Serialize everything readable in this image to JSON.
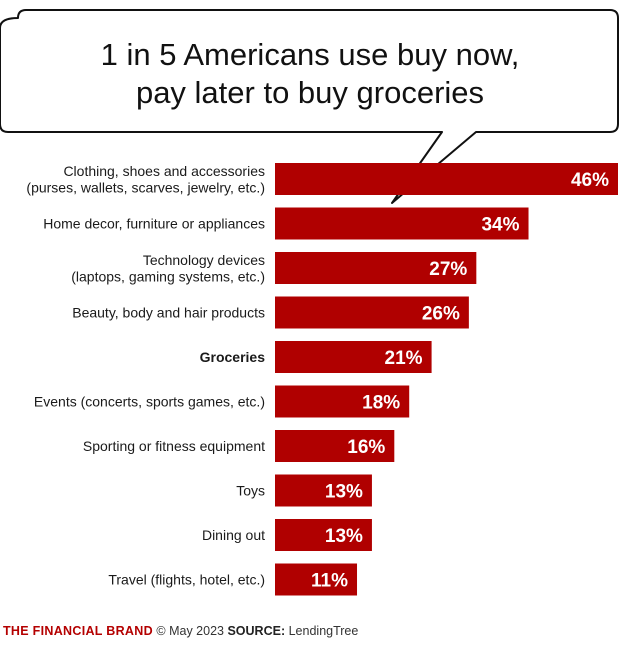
{
  "title": {
    "line1": "1 in 5 Americans use buy now,",
    "line2": "pay later to buy groceries"
  },
  "chart_data": {
    "type": "bar",
    "orientation": "horizontal",
    "title": "1 in 5 Americans use buy now, pay later to buy groceries",
    "categories": [
      [
        "Clothing, shoes and accessories",
        "(purses, wallets, scarves, jewelry, etc.)"
      ],
      [
        "Home decor, furniture or appliances"
      ],
      [
        "Technology devices",
        "(laptops, gaming systems, etc.)"
      ],
      [
        "Beauty, body and hair products"
      ],
      [
        "Groceries"
      ],
      [
        "Events (concerts, sports games, etc.)"
      ],
      [
        "Sporting or fitness equipment"
      ],
      [
        "Toys"
      ],
      [
        "Dining out"
      ],
      [
        "Travel (flights, hotel, etc.)"
      ]
    ],
    "values": [
      46,
      34,
      27,
      26,
      21,
      18,
      16,
      13,
      13,
      11
    ],
    "value_labels": [
      "46%",
      "34%",
      "27%",
      "26%",
      "21%",
      "18%",
      "16%",
      "13%",
      "13%",
      "11%"
    ],
    "highlight_index": 4,
    "xlim": [
      0,
      46
    ],
    "bar_color": "#b00000",
    "label_color": "#ffffff"
  },
  "footer": {
    "brand": "THE FINANCIAL BRAND",
    "copyright": "© May 2023",
    "source_label": "SOURCE:",
    "source": "LendingTree"
  }
}
